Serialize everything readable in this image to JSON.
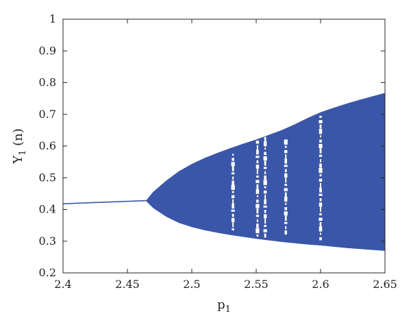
{
  "chart_data": {
    "type": "scatter",
    "title": "",
    "xlabel": "p1",
    "xlabel_main": "p",
    "xlabel_sub": "1",
    "ylabel": "Y1 (n)",
    "ylabel_main": "Y",
    "ylabel_sub": "1",
    "ylabel_suffix": " (n)",
    "xlim": [
      2.4,
      2.65
    ],
    "ylim": [
      0.2,
      1.0
    ],
    "x_ticks": [
      "2.4",
      "2.45",
      "2.5",
      "2.55",
      "2.6",
      "2.65"
    ],
    "y_ticks": [
      "0.2",
      "0.3",
      "0.4",
      "0.5",
      "0.6",
      "0.7",
      "0.8",
      "0.9",
      "1"
    ],
    "grid": false,
    "legend": "none",
    "series": [
      {
        "color": "#3a56a8",
        "bifurcation_point": 2.465,
        "fixed_point_branch": {
          "x": [
            2.4,
            2.465
          ],
          "y": [
            0.418,
            0.428
          ]
        },
        "upper_envelope": {
          "x": [
            2.465,
            2.47,
            2.48,
            2.49,
            2.5,
            2.51,
            2.52,
            2.53,
            2.54,
            2.55,
            2.56,
            2.57,
            2.58,
            2.59,
            2.6,
            2.61,
            2.62,
            2.63,
            2.64,
            2.65
          ],
          "y": [
            0.43,
            0.455,
            0.49,
            0.52,
            0.543,
            0.562,
            0.578,
            0.593,
            0.607,
            0.62,
            0.635,
            0.65,
            0.668,
            0.688,
            0.706,
            0.72,
            0.733,
            0.745,
            0.756,
            0.767
          ]
        },
        "lower_envelope": {
          "x": [
            2.465,
            2.47,
            2.48,
            2.49,
            2.5,
            2.51,
            2.52,
            2.53,
            2.54,
            2.55,
            2.56,
            2.57,
            2.58,
            2.59,
            2.6,
            2.61,
            2.62,
            2.63,
            2.64,
            2.65
          ],
          "y": [
            0.425,
            0.405,
            0.378,
            0.358,
            0.345,
            0.335,
            0.327,
            0.32,
            0.314,
            0.308,
            0.303,
            0.298,
            0.294,
            0.29,
            0.287,
            0.283,
            0.279,
            0.276,
            0.273,
            0.27
          ]
        },
        "periodic_windows": [
          {
            "x": 2.532,
            "y_min": 0.33,
            "y_max": 0.58
          },
          {
            "x": 2.551,
            "y_min": 0.31,
            "y_max": 0.62
          },
          {
            "x": 2.557,
            "y_min": 0.31,
            "y_max": 0.63
          },
          {
            "x": 2.573,
            "y_min": 0.32,
            "y_max": 0.62
          },
          {
            "x": 2.6,
            "y_min": 0.3,
            "y_max": 0.7
          }
        ]
      }
    ]
  }
}
